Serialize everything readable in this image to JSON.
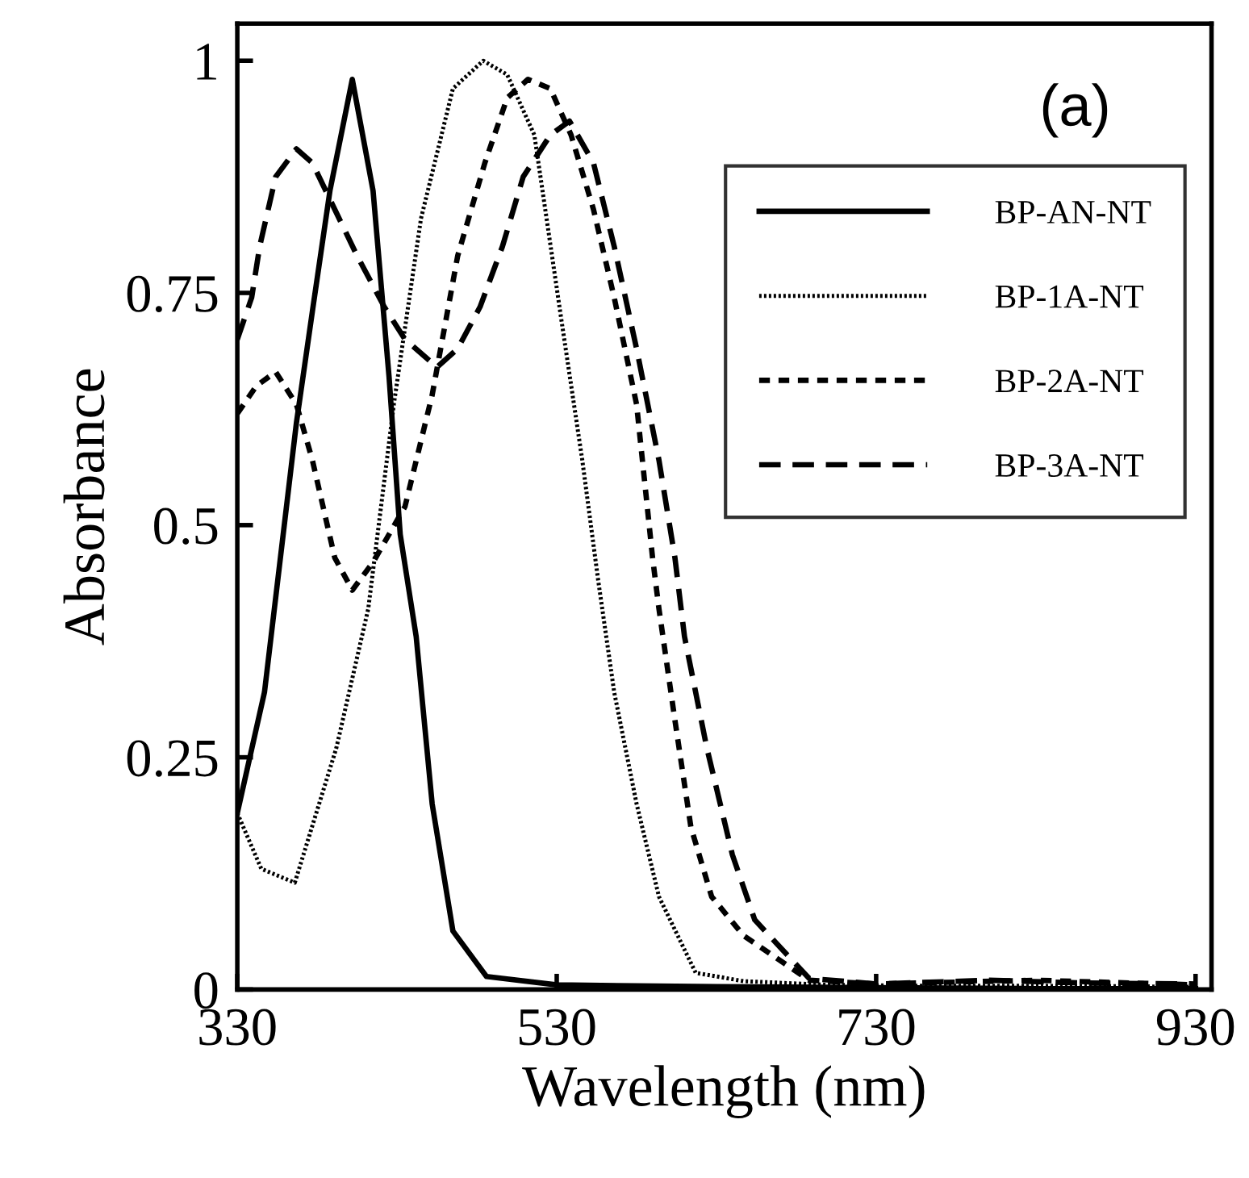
{
  "chart_data": {
    "type": "line",
    "xlabel": "Wavelength (nm)",
    "ylabel": "Absorbance",
    "xlim": [
      330,
      940
    ],
    "ylim": [
      0,
      1.04
    ],
    "xticks": [
      330,
      530,
      730,
      930
    ],
    "yticks": [
      0,
      0.25,
      0.5,
      0.75,
      1
    ],
    "grid": false,
    "legend": "top right",
    "marker": "none",
    "annotations": [
      "(a)"
    ],
    "series": [
      {
        "name": "BP-AN-NT",
        "color": "#000000",
        "line_style": "solid",
        "x": [
          330,
          347,
          367,
          377,
          388,
          402,
          415,
          425,
          432,
          442,
          452,
          465,
          486,
          530,
          630,
          730,
          830,
          930
        ],
        "values": [
          0.19,
          0.32,
          0.61,
          0.73,
          0.86,
          0.98,
          0.86,
          0.66,
          0.49,
          0.38,
          0.2,
          0.063,
          0.014,
          0.005,
          0.003,
          0.002,
          0.001,
          0.001
        ]
      },
      {
        "name": "BP-1A-NT",
        "color": "#000000",
        "line_style": "dotted",
        "x": [
          330,
          345,
          366,
          392,
          412,
          428,
          445,
          465,
          484,
          499,
          516,
          533,
          546,
          556,
          566,
          580,
          594,
          617,
          647,
          700,
          760,
          830,
          930
        ],
        "values": [
          0.19,
          0.13,
          0.115,
          0.26,
          0.41,
          0.63,
          0.83,
          0.97,
          1.0,
          0.985,
          0.92,
          0.72,
          0.57,
          0.44,
          0.32,
          0.2,
          0.1,
          0.018,
          0.009,
          0.005,
          0.004,
          0.004,
          0.003
        ]
      },
      {
        "name": "BP-2A-NT",
        "color": "#000000",
        "line_style": "dashed",
        "x": [
          330,
          342,
          354,
          367,
          377,
          391,
          402,
          415,
          435,
          452,
          468,
          485,
          499,
          512,
          526,
          539,
          553,
          566,
          580,
          590,
          594,
          604,
          614,
          627,
          647,
          688,
          730,
          830,
          930
        ],
        "values": [
          0.62,
          0.65,
          0.665,
          0.63,
          0.57,
          0.465,
          0.43,
          0.46,
          0.52,
          0.64,
          0.79,
          0.89,
          0.96,
          0.98,
          0.97,
          0.92,
          0.84,
          0.745,
          0.63,
          0.465,
          0.41,
          0.29,
          0.175,
          0.1,
          0.058,
          0.01,
          0.006,
          0.01,
          0.005
        ]
      },
      {
        "name": "BP-3A-NT",
        "color": "#000000",
        "line_style": "dashed",
        "x": [
          330,
          339,
          344,
          354,
          367,
          377,
          391,
          405,
          422,
          435,
          455,
          468,
          482,
          496,
          509,
          526,
          538,
          553,
          566,
          580,
          594,
          604,
          610,
          624,
          640,
          654,
          688,
          730,
          800,
          860,
          930
        ],
        "values": [
          0.7,
          0.745,
          0.8,
          0.875,
          0.905,
          0.89,
          0.84,
          0.79,
          0.735,
          0.7,
          0.67,
          0.69,
          0.735,
          0.8,
          0.875,
          0.92,
          0.935,
          0.89,
          0.8,
          0.69,
          0.57,
          0.465,
          0.38,
          0.26,
          0.145,
          0.075,
          0.012,
          0.006,
          0.01,
          0.007,
          0.006
        ]
      }
    ]
  }
}
